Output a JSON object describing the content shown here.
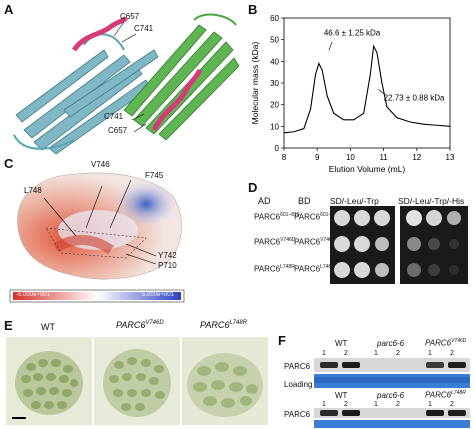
{
  "panels": {
    "a": "A",
    "b": "B",
    "c": "C",
    "d": "D",
    "e": "E",
    "f": "F"
  },
  "panel_a": {
    "residues": [
      "C657",
      "C741",
      "C741",
      "C657"
    ]
  },
  "chart_data": {
    "type": "line",
    "xlabel": "Elution Volume (mL)",
    "ylabel": "Molecular mass (kDa)",
    "xlim": [
      8,
      13
    ],
    "ylim": [
      0,
      60
    ],
    "xticks": [
      8,
      9,
      10,
      11,
      12,
      13
    ],
    "yticks": [
      0,
      10,
      20,
      30,
      40,
      50,
      60
    ],
    "series": [
      {
        "x": [
          8.0,
          8.3,
          8.6,
          8.8,
          8.95,
          9.05,
          9.15,
          9.3,
          9.5,
          9.8,
          10.1,
          10.4,
          10.6,
          10.7,
          10.8,
          10.95,
          11.1,
          11.4,
          11.8,
          12.2,
          12.6,
          13.0
        ],
        "values": [
          7.0,
          7.5,
          9,
          18,
          34,
          39,
          36,
          24,
          16,
          13,
          13,
          16,
          34,
          47,
          44,
          30,
          19,
          14,
          12,
          11,
          10.5,
          10
        ]
      }
    ],
    "annotations": [
      "46.6 ± 1.25 kDa",
      "22.73 ± 0.88 kDa"
    ]
  },
  "panel_c": {
    "residues": [
      "V746",
      "F745",
      "L748",
      "Y742",
      "P710"
    ],
    "scale_left": "-5.000e+001",
    "scale_right": "5.000e+001"
  },
  "panel_d": {
    "col_ad": "AD",
    "col_bd": "BD",
    "medium1": "SD/-Leu/-Trp",
    "medium2": "SD/-Leu/-Trp/-His",
    "rows": [
      {
        "ad": "PARC6",
        "ad_sup": "601–819",
        "bd": "PARC6",
        "bd_sup": "601–819"
      },
      {
        "ad": "PARC6",
        "ad_sup": "V746D",
        "bd": "PARC6",
        "bd_sup": "V746D"
      },
      {
        "ad": "PARC6",
        "ad_sup": "L748R",
        "bd": "PARC6",
        "bd_sup": "L748R"
      }
    ]
  },
  "panel_e": {
    "wt": "WT",
    "v746d_base": "PARC6",
    "v746d_sup": "V746D",
    "l748r_base": "PARC6",
    "l748r_sup": "L748R"
  },
  "panel_f": {
    "top": {
      "wt": "WT",
      "mut": "parc6-6",
      "sp_base": "PARC6",
      "sp_sup": "V746D"
    },
    "bottom": {
      "wt": "WT",
      "mut": "parc6-6",
      "sp_base": "PARC6",
      "sp_sup": "L748R"
    },
    "lanes": [
      "1",
      "2"
    ],
    "row_parc6": "PARC6",
    "row_loading": "Loading"
  }
}
